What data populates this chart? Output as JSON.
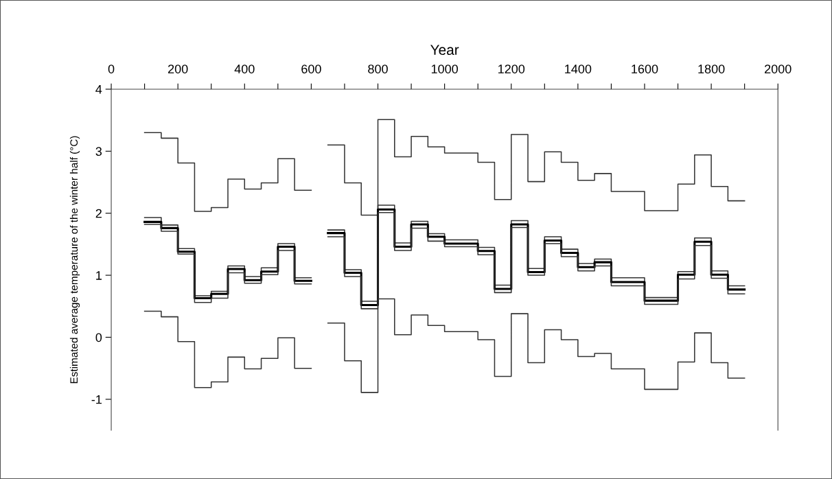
{
  "chart_data": {
    "type": "step",
    "xlabel": "Year",
    "ylabel": "Estimated average temperature of the winter half (°C)",
    "x": [
      100,
      150,
      200,
      250,
      300,
      350,
      400,
      450,
      500,
      550,
      600,
      650,
      700,
      750,
      800,
      850,
      900,
      950,
      1000,
      1050,
      1100,
      1150,
      1200,
      1250,
      1300,
      1350,
      1400,
      1450,
      1500,
      1550,
      1600,
      1650,
      1700,
      1750,
      1800,
      1850,
      1900
    ],
    "series": [
      {
        "color": "#333333",
        "values": [
          3.3,
          3.21,
          2.81,
          2.03,
          2.09,
          2.55,
          2.39,
          2.49,
          2.88,
          2.37,
          null,
          3.1,
          2.49,
          1.97,
          3.51,
          2.91,
          3.24,
          3.07,
          2.97,
          2.97,
          2.82,
          2.22,
          3.27,
          2.51,
          2.99,
          2.82,
          2.53,
          2.64,
          2.35,
          2.35,
          2.04,
          2.04,
          2.47,
          2.94,
          2.43,
          2.2,
          2.2
        ]
      },
      {
        "color": "#333333",
        "values": [
          1.93,
          1.81,
          1.43,
          0.67,
          0.74,
          1.15,
          0.98,
          1.12,
          1.51,
          0.96,
          null,
          1.73,
          1.09,
          0.58,
          2.13,
          1.52,
          1.87,
          1.67,
          1.57,
          1.57,
          1.45,
          0.84,
          1.88,
          1.11,
          1.62,
          1.42,
          1.19,
          1.26,
          0.96,
          0.96,
          0.64,
          0.64,
          1.06,
          1.6,
          1.07,
          0.83,
          0.83
        ]
      },
      {
        "color": "#000000",
        "values": [
          1.86,
          1.76,
          1.38,
          0.63,
          0.7,
          1.1,
          0.92,
          1.06,
          1.46,
          0.91,
          null,
          1.68,
          1.04,
          0.52,
          2.06,
          1.46,
          1.82,
          1.62,
          1.51,
          1.51,
          1.39,
          0.78,
          1.82,
          1.05,
          1.56,
          1.36,
          1.13,
          1.21,
          0.89,
          0.89,
          0.59,
          0.59,
          1.01,
          1.54,
          1.01,
          0.77,
          0.77
        ]
      },
      {
        "color": "#333333",
        "values": [
          1.82,
          1.71,
          1.34,
          0.56,
          0.63,
          1.04,
          0.87,
          1.01,
          1.4,
          0.86,
          null,
          1.62,
          0.98,
          0.46,
          2.01,
          1.4,
          1.76,
          1.55,
          1.46,
          1.46,
          1.33,
          0.72,
          1.77,
          1.0,
          1.51,
          1.3,
          1.07,
          1.15,
          0.83,
          0.83,
          0.53,
          0.53,
          0.94,
          1.48,
          0.95,
          0.7,
          0.7
        ]
      },
      {
        "color": "#333333",
        "values": [
          0.42,
          0.33,
          -0.07,
          -0.81,
          -0.72,
          -0.32,
          -0.51,
          -0.34,
          -0.01,
          -0.5,
          null,
          0.23,
          -0.38,
          -0.89,
          0.62,
          0.04,
          0.36,
          0.19,
          0.09,
          0.09,
          -0.04,
          -0.63,
          0.38,
          -0.41,
          0.12,
          -0.04,
          -0.31,
          -0.26,
          -0.51,
          -0.51,
          -0.84,
          -0.84,
          -0.4,
          0.07,
          -0.41,
          -0.66,
          -0.66
        ]
      }
    ],
    "xlim": [
      0,
      2000
    ],
    "xticks": [
      0,
      {
        "value": 100,
        "label": null
      },
      200,
      {
        "value": 300,
        "label": null
      },
      400,
      {
        "value": 500,
        "label": null
      },
      600,
      {
        "value": 700,
        "label": null
      },
      800,
      {
        "value": 900,
        "label": null
      },
      1000,
      {
        "value": 1100,
        "label": null
      },
      1200,
      {
        "value": 1300,
        "label": null
      },
      1400,
      {
        "value": 1500,
        "label": null
      },
      1600,
      {
        "value": 1700,
        "label": null
      },
      1800,
      {
        "value": 1900,
        "label": null
      },
      2000
    ],
    "ylim": [
      -1.5,
      4
    ],
    "yticks": [
      -1,
      0,
      1,
      2,
      3,
      4
    ],
    "grid": false,
    "legend": false
  }
}
